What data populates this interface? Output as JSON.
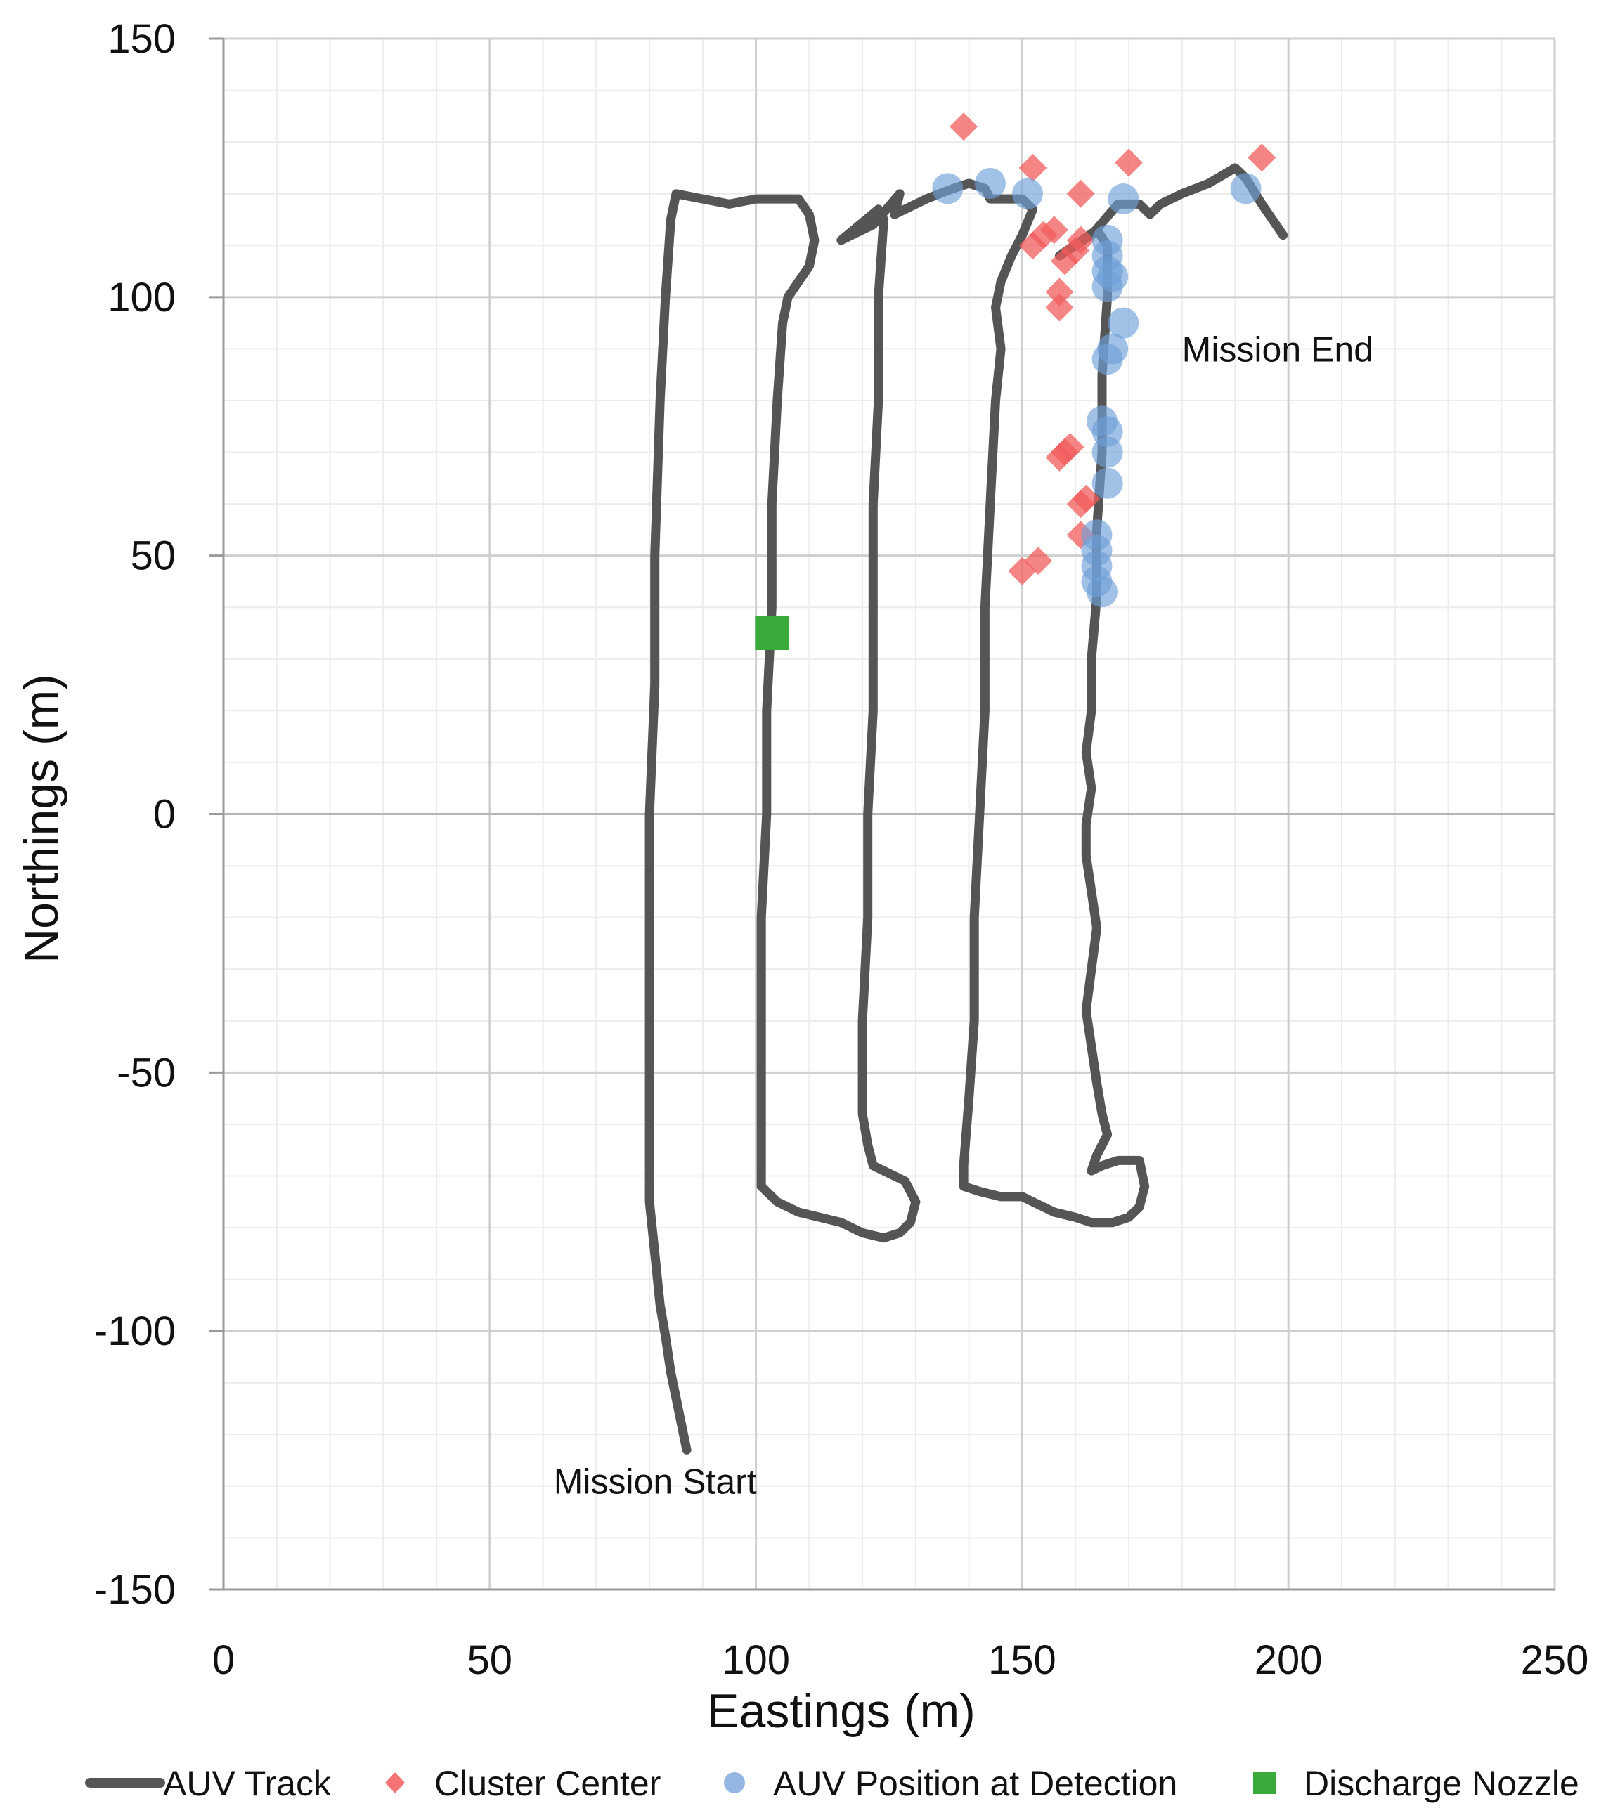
{
  "chart_data": {
    "type": "scatter",
    "xlabel": "Eastings (m)",
    "ylabel": "Northings (m)",
    "xlim": [
      0,
      250
    ],
    "ylim": [
      -150,
      150
    ],
    "xticks": [
      0,
      50,
      100,
      150,
      200,
      250
    ],
    "yticks": [
      -150,
      -100,
      -50,
      0,
      50,
      100,
      150
    ],
    "minor_grid_step": 10,
    "grid": true,
    "legend_position": "bottom",
    "colors": {
      "track": "#555555",
      "cluster": "#f25c5c",
      "auv": "#6f9fd8",
      "nozzle": "#3aaa3a"
    },
    "annotations": [
      {
        "text": "Mission End",
        "x": 180,
        "y": 90
      },
      {
        "text": "Mission Start",
        "x": 62,
        "y": -129
      }
    ],
    "series": [
      {
        "name": "AUV Track",
        "kind": "line",
        "points": [
          [
            87,
            -123
          ],
          [
            86,
            -118
          ],
          [
            85,
            -113
          ],
          [
            84,
            -108
          ],
          [
            83,
            -101
          ],
          [
            82,
            -95
          ],
          [
            81,
            -85
          ],
          [
            80,
            -75
          ],
          [
            80,
            -65
          ],
          [
            80,
            -55
          ],
          [
            80,
            -40
          ],
          [
            80,
            -20
          ],
          [
            80,
            0
          ],
          [
            81,
            25
          ],
          [
            81,
            50
          ],
          [
            82,
            80
          ],
          [
            83,
            100
          ],
          [
            84,
            115
          ],
          [
            85,
            120
          ],
          [
            90,
            119
          ],
          [
            95,
            118
          ],
          [
            100,
            119
          ],
          [
            105,
            119
          ],
          [
            108,
            119
          ],
          [
            110,
            116
          ],
          [
            111,
            111
          ],
          [
            110,
            106
          ],
          [
            108,
            103
          ],
          [
            106,
            100
          ],
          [
            105,
            95
          ],
          [
            104,
            80
          ],
          [
            103,
            60
          ],
          [
            103,
            40
          ],
          [
            102,
            20
          ],
          [
            102,
            0
          ],
          [
            101,
            -20
          ],
          [
            101,
            -40
          ],
          [
            101,
            -60
          ],
          [
            101,
            -72
          ],
          [
            104,
            -75
          ],
          [
            108,
            -77
          ],
          [
            112,
            -78
          ],
          [
            116,
            -79
          ],
          [
            120,
            -81
          ],
          [
            124,
            -82
          ],
          [
            127,
            -81
          ],
          [
            129,
            -79
          ],
          [
            130,
            -75
          ],
          [
            128,
            -71
          ],
          [
            124,
            -69
          ],
          [
            122,
            -68
          ],
          [
            121,
            -64
          ],
          [
            120,
            -58
          ],
          [
            120,
            -50
          ],
          [
            120,
            -40
          ],
          [
            121,
            -20
          ],
          [
            121,
            0
          ],
          [
            122,
            20
          ],
          [
            122,
            40
          ],
          [
            122,
            60
          ],
          [
            123,
            80
          ],
          [
            123,
            100
          ],
          [
            124,
            115
          ],
          [
            123,
            117
          ],
          [
            116,
            111
          ],
          [
            122,
            114
          ],
          [
            127,
            120
          ],
          [
            126,
            116
          ],
          [
            132,
            119
          ],
          [
            137,
            121
          ],
          [
            140,
            122
          ],
          [
            143,
            121
          ],
          [
            144,
            119
          ],
          [
            150,
            119
          ],
          [
            152,
            117
          ],
          [
            150,
            112
          ],
          [
            148,
            108
          ],
          [
            146,
            103
          ],
          [
            145,
            98
          ],
          [
            146,
            90
          ],
          [
            145,
            80
          ],
          [
            144,
            60
          ],
          [
            143,
            40
          ],
          [
            143,
            20
          ],
          [
            142,
            0
          ],
          [
            141,
            -20
          ],
          [
            141,
            -40
          ],
          [
            140,
            -55
          ],
          [
            139,
            -68
          ],
          [
            139,
            -72
          ],
          [
            142,
            -73
          ],
          [
            146,
            -74
          ],
          [
            150,
            -74
          ],
          [
            152,
            -75
          ],
          [
            156,
            -77
          ],
          [
            160,
            -78
          ],
          [
            163,
            -79
          ],
          [
            167,
            -79
          ],
          [
            170,
            -78
          ],
          [
            172,
            -76
          ],
          [
            173,
            -72
          ],
          [
            172,
            -67
          ],
          [
            168,
            -67
          ],
          [
            165,
            -68
          ],
          [
            163,
            -69
          ],
          [
            164,
            -66
          ],
          [
            166,
            -62
          ],
          [
            165,
            -58
          ],
          [
            164,
            -52
          ],
          [
            163,
            -45
          ],
          [
            162,
            -38
          ],
          [
            163,
            -30
          ],
          [
            164,
            -22
          ],
          [
            163,
            -15
          ],
          [
            162,
            -8
          ],
          [
            162,
            -2
          ],
          [
            163,
            5
          ],
          [
            162,
            12
          ],
          [
            163,
            20
          ],
          [
            163,
            30
          ],
          [
            164,
            42
          ],
          [
            164,
            55
          ],
          [
            165,
            70
          ],
          [
            165,
            85
          ],
          [
            166,
            100
          ],
          [
            166,
            110
          ],
          [
            164,
            113
          ],
          [
            157,
            108
          ],
          [
            163,
            112
          ],
          [
            168,
            118
          ],
          [
            172,
            118
          ],
          [
            174,
            116
          ],
          [
            176,
            118
          ],
          [
            180,
            120
          ],
          [
            185,
            122
          ],
          [
            190,
            125
          ],
          [
            192,
            123
          ],
          [
            195,
            118
          ],
          [
            197,
            115
          ],
          [
            199,
            112
          ]
        ]
      },
      {
        "name": "Cluster Center",
        "kind": "diamond",
        "points": [
          [
            139,
            133
          ],
          [
            152,
            125
          ],
          [
            161,
            120
          ],
          [
            170,
            126
          ],
          [
            195,
            127
          ],
          [
            154,
            112
          ],
          [
            156,
            113
          ],
          [
            152,
            110
          ],
          [
            158,
            107
          ],
          [
            160,
            109
          ],
          [
            161,
            111
          ],
          [
            157,
            101
          ],
          [
            157,
            98
          ],
          [
            157,
            69
          ],
          [
            158,
            70
          ],
          [
            159,
            71
          ],
          [
            161,
            60
          ],
          [
            162,
            61
          ],
          [
            161,
            54
          ],
          [
            150,
            47
          ],
          [
            153,
            49
          ]
        ]
      },
      {
        "name": "AUV Position at Detection",
        "kind": "circle",
        "points": [
          [
            136,
            121
          ],
          [
            144,
            122
          ],
          [
            151,
            120
          ],
          [
            169,
            119
          ],
          [
            192,
            121
          ],
          [
            166,
            111
          ],
          [
            166,
            108
          ],
          [
            166,
            105
          ],
          [
            166,
            102
          ],
          [
            167,
            104
          ],
          [
            169,
            95
          ],
          [
            167,
            90
          ],
          [
            166,
            88
          ],
          [
            165,
            76
          ],
          [
            166,
            74
          ],
          [
            166,
            70
          ],
          [
            166,
            64
          ],
          [
            164,
            54
          ],
          [
            164,
            51
          ],
          [
            164,
            48
          ],
          [
            164,
            45
          ],
          [
            165,
            43
          ]
        ]
      },
      {
        "name": "Discharge Nozzle",
        "kind": "square",
        "points": [
          [
            103,
            35
          ]
        ]
      }
    ]
  }
}
